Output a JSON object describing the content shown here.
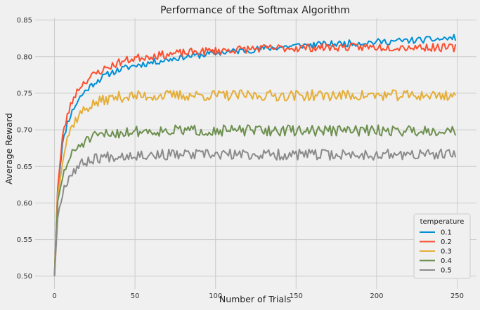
{
  "chart_data": {
    "type": "line",
    "title": "Performance of the Softmax Algorithm",
    "xlabel": "Number of Trials",
    "ylabel": "Average Reward",
    "xlim": [
      -12,
      262
    ],
    "ylim": [
      0.4825,
      0.8525
    ],
    "x_ticks": [
      0,
      50,
      100,
      150,
      200,
      250
    ],
    "y_ticks": [
      0.5,
      0.55,
      0.6,
      0.65,
      0.7,
      0.75,
      0.8,
      0.85
    ],
    "x_tick_labels": [
      "0",
      "50",
      "100",
      "150",
      "200",
      "250"
    ],
    "y_tick_labels": [
      "0.50",
      "0.55",
      "0.60",
      "0.65",
      "0.70",
      "0.75",
      "0.80",
      "0.85"
    ],
    "grid": true,
    "legend": {
      "title": "temperature",
      "placement": "lower-right"
    },
    "num_points": 250,
    "series": [
      {
        "name": "0.1",
        "color": "#008fd5",
        "points": [
          [
            0,
            0.5
          ],
          [
            2,
            0.62
          ],
          [
            5,
            0.68
          ],
          [
            8,
            0.71
          ],
          [
            12,
            0.73
          ],
          [
            16,
            0.745
          ],
          [
            20,
            0.755
          ],
          [
            25,
            0.765
          ],
          [
            30,
            0.772
          ],
          [
            35,
            0.778
          ],
          [
            40,
            0.782
          ],
          [
            45,
            0.785
          ],
          [
            50,
            0.788
          ],
          [
            55,
            0.79
          ],
          [
            60,
            0.792
          ],
          [
            65,
            0.794
          ],
          [
            70,
            0.796
          ],
          [
            75,
            0.798
          ],
          [
            80,
            0.8
          ],
          [
            90,
            0.802
          ],
          [
            100,
            0.805
          ],
          [
            110,
            0.807
          ],
          [
            120,
            0.809
          ],
          [
            130,
            0.811
          ],
          [
            140,
            0.813
          ],
          [
            150,
            0.815
          ],
          [
            160,
            0.816
          ],
          [
            170,
            0.817
          ],
          [
            180,
            0.818
          ],
          [
            190,
            0.819
          ],
          [
            200,
            0.82
          ],
          [
            210,
            0.821
          ],
          [
            220,
            0.822
          ],
          [
            230,
            0.823
          ],
          [
            240,
            0.824
          ],
          [
            249,
            0.826
          ]
        ],
        "amp": 0.0045,
        "seed": 11
      },
      {
        "name": "0.2",
        "color": "#fc4f30",
        "points": [
          [
            0,
            0.5
          ],
          [
            2,
            0.62
          ],
          [
            5,
            0.69
          ],
          [
            8,
            0.72
          ],
          [
            12,
            0.745
          ],
          [
            16,
            0.76
          ],
          [
            20,
            0.768
          ],
          [
            25,
            0.776
          ],
          [
            30,
            0.782
          ],
          [
            35,
            0.787
          ],
          [
            40,
            0.792
          ],
          [
            45,
            0.795
          ],
          [
            50,
            0.798
          ],
          [
            60,
            0.801
          ],
          [
            70,
            0.803
          ],
          [
            80,
            0.805
          ],
          [
            90,
            0.807
          ],
          [
            100,
            0.808
          ],
          [
            125,
            0.811
          ],
          [
            150,
            0.812
          ],
          [
            175,
            0.813
          ],
          [
            200,
            0.813
          ],
          [
            225,
            0.813
          ],
          [
            249,
            0.812
          ]
        ],
        "amp": 0.0055,
        "seed": 23
      },
      {
        "name": "0.3",
        "color": "#e5ae38",
        "points": [
          [
            0,
            0.5
          ],
          [
            2,
            0.61
          ],
          [
            5,
            0.66
          ],
          [
            8,
            0.69
          ],
          [
            12,
            0.71
          ],
          [
            16,
            0.722
          ],
          [
            20,
            0.73
          ],
          [
            25,
            0.736
          ],
          [
            30,
            0.74
          ],
          [
            35,
            0.743
          ],
          [
            40,
            0.745
          ],
          [
            50,
            0.746
          ],
          [
            75,
            0.747
          ],
          [
            100,
            0.747
          ],
          [
            125,
            0.747
          ],
          [
            150,
            0.747
          ],
          [
            175,
            0.747
          ],
          [
            200,
            0.747
          ],
          [
            225,
            0.747
          ],
          [
            249,
            0.747
          ]
        ],
        "amp": 0.0075,
        "seed": 37
      },
      {
        "name": "0.4",
        "color": "#6d904f",
        "points": [
          [
            0,
            0.5
          ],
          [
            2,
            0.6
          ],
          [
            5,
            0.635
          ],
          [
            8,
            0.655
          ],
          [
            12,
            0.67
          ],
          [
            16,
            0.68
          ],
          [
            20,
            0.685
          ],
          [
            25,
            0.69
          ],
          [
            30,
            0.693
          ],
          [
            35,
            0.695
          ],
          [
            40,
            0.696
          ],
          [
            50,
            0.698
          ],
          [
            75,
            0.699
          ],
          [
            100,
            0.699
          ],
          [
            125,
            0.699
          ],
          [
            150,
            0.699
          ],
          [
            175,
            0.699
          ],
          [
            200,
            0.699
          ],
          [
            225,
            0.699
          ],
          [
            249,
            0.699
          ]
        ],
        "amp": 0.0075,
        "seed": 51
      },
      {
        "name": "0.5",
        "color": "#8b8b8b",
        "points": [
          [
            0,
            0.5
          ],
          [
            2,
            0.58
          ],
          [
            5,
            0.615
          ],
          [
            8,
            0.632
          ],
          [
            12,
            0.645
          ],
          [
            16,
            0.652
          ],
          [
            20,
            0.657
          ],
          [
            25,
            0.661
          ],
          [
            30,
            0.663
          ],
          [
            40,
            0.665
          ],
          [
            50,
            0.666
          ],
          [
            75,
            0.666
          ],
          [
            100,
            0.666
          ],
          [
            125,
            0.666
          ],
          [
            150,
            0.666
          ],
          [
            175,
            0.666
          ],
          [
            200,
            0.666
          ],
          [
            225,
            0.666
          ],
          [
            249,
            0.666
          ]
        ],
        "amp": 0.0075,
        "seed": 67
      }
    ]
  }
}
